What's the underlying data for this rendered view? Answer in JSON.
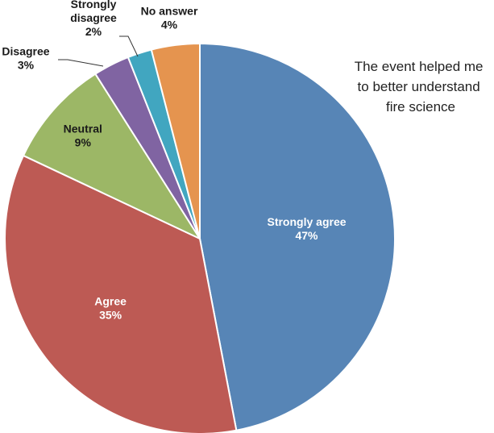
{
  "chart_data": {
    "type": "pie",
    "title_lines": [
      "The event helped me",
      "to better understand",
      "fire science"
    ],
    "slices": [
      {
        "category": "Strongly agree",
        "percent_label": "47%",
        "value": 47,
        "color": "#5785b6"
      },
      {
        "category": "Agree",
        "percent_label": "35%",
        "value": 35,
        "color": "#bd5a54"
      },
      {
        "category": "Neutral",
        "percent_label": "9%",
        "value": 9,
        "color": "#9cb766"
      },
      {
        "category": "Disagree",
        "percent_label": "3%",
        "value": 3,
        "color": "#8064a2"
      },
      {
        "category": "Strongly disagree",
        "percent_label": "2%",
        "value": 2,
        "color": "#41a6c0"
      },
      {
        "category": "No answer",
        "percent_label": "4%",
        "value": 4,
        "color": "#e5944f"
      }
    ],
    "slice_border_color": "#ffffff",
    "legend": "none"
  }
}
